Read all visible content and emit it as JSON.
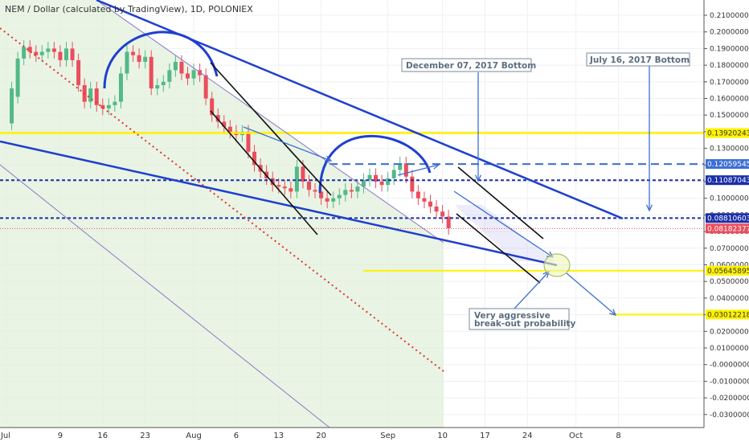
{
  "chart_data": {
    "type": "candlestick",
    "title": "NEM / Dollar (calculated by TradingView), 1D, POLONIEX",
    "x_tick_labels": [
      "Jul",
      "9",
      "16",
      "23",
      "Aug",
      "6",
      "13",
      "20",
      "Sep",
      "10",
      "17",
      "24",
      "Oct",
      "8"
    ],
    "y_tick_labels": [
      "0.21000000",
      "0.20000000",
      "0.19000000",
      "0.18000000",
      "0.17000000",
      "0.16000000",
      "0.15000000",
      "0.14000000",
      "0.13000000",
      "0.12000000",
      "0.11000000",
      "0.10000000",
      "0.09000000",
      "0.08000000",
      "0.07000000",
      "0.06000000",
      "0.05000000",
      "0.04000000",
      "0.03000000",
      "0.02000000",
      "0.01000000",
      "-0.00000000",
      "-0.01000000",
      "-0.02000000",
      "-0.03000000"
    ],
    "ylim": [
      -0.0335,
      0.2175
    ],
    "grid": true,
    "colors": {
      "up": "#53b987",
      "down": "#eb4d5c",
      "trend": "#1f3fcf",
      "level": "#fff200"
    },
    "candles": [
      {
        "x": 1,
        "o": 0.145,
        "c": 0.166
      },
      {
        "x": 2,
        "o": 0.161,
        "c": 0.184
      },
      {
        "x": 3,
        "o": 0.184,
        "c": 0.191
      },
      {
        "x": 4,
        "o": 0.191,
        "c": 0.188
      },
      {
        "x": 5,
        "o": 0.188,
        "c": 0.186
      },
      {
        "x": 6,
        "o": 0.186,
        "c": 0.188
      },
      {
        "x": 7,
        "o": 0.188,
        "c": 0.19
      },
      {
        "x": 8,
        "o": 0.19,
        "c": 0.188
      },
      {
        "x": 9,
        "o": 0.188,
        "c": 0.183
      },
      {
        "x": 10,
        "o": 0.183,
        "c": 0.19
      },
      {
        "x": 11,
        "o": 0.19,
        "c": 0.183
      },
      {
        "x": 12,
        "o": 0.183,
        "c": 0.168
      },
      {
        "x": 13,
        "o": 0.168,
        "c": 0.158
      },
      {
        "x": 14,
        "o": 0.158,
        "c": 0.166
      },
      {
        "x": 15,
        "o": 0.166,
        "c": 0.156
      },
      {
        "x": 16,
        "o": 0.156,
        "c": 0.154
      },
      {
        "x": 17,
        "o": 0.154,
        "c": 0.156
      },
      {
        "x": 18,
        "o": 0.156,
        "c": 0.158
      },
      {
        "x": 19,
        "o": 0.158,
        "c": 0.175
      },
      {
        "x": 20,
        "o": 0.175,
        "c": 0.188
      },
      {
        "x": 21,
        "o": 0.188,
        "c": 0.186
      },
      {
        "x": 22,
        "o": 0.186,
        "c": 0.182
      },
      {
        "x": 23,
        "o": 0.182,
        "c": 0.185
      },
      {
        "x": 24,
        "o": 0.185,
        "c": 0.166
      },
      {
        "x": 25,
        "o": 0.166,
        "c": 0.168
      },
      {
        "x": 26,
        "o": 0.168,
        "c": 0.17
      },
      {
        "x": 27,
        "o": 0.17,
        "c": 0.177
      },
      {
        "x": 28,
        "o": 0.177,
        "c": 0.182
      },
      {
        "x": 29,
        "o": 0.182,
        "c": 0.175
      },
      {
        "x": 30,
        "o": 0.175,
        "c": 0.172
      },
      {
        "x": 31,
        "o": 0.172,
        "c": 0.177
      },
      {
        "x": 32,
        "o": 0.177,
        "c": 0.174
      },
      {
        "x": 33,
        "o": 0.174,
        "c": 0.16
      },
      {
        "x": 34,
        "o": 0.16,
        "c": 0.15
      },
      {
        "x": 35,
        "o": 0.15,
        "c": 0.146
      },
      {
        "x": 36,
        "o": 0.146,
        "c": 0.143
      },
      {
        "x": 37,
        "o": 0.143,
        "c": 0.14
      },
      {
        "x": 38,
        "o": 0.14,
        "c": 0.138
      },
      {
        "x": 39,
        "o": 0.138,
        "c": 0.14
      },
      {
        "x": 40,
        "o": 0.14,
        "c": 0.128
      },
      {
        "x": 41,
        "o": 0.128,
        "c": 0.12
      },
      {
        "x": 42,
        "o": 0.12,
        "c": 0.116
      },
      {
        "x": 43,
        "o": 0.116,
        "c": 0.112
      },
      {
        "x": 44,
        "o": 0.112,
        "c": 0.108
      },
      {
        "x": 45,
        "o": 0.108,
        "c": 0.107
      },
      {
        "x": 46,
        "o": 0.107,
        "c": 0.106
      },
      {
        "x": 47,
        "o": 0.106,
        "c": 0.104
      },
      {
        "x": 48,
        "o": 0.104,
        "c": 0.119
      },
      {
        "x": 49,
        "o": 0.119,
        "c": 0.11
      },
      {
        "x": 50,
        "o": 0.11,
        "c": 0.105
      },
      {
        "x": 51,
        "o": 0.105,
        "c": 0.104
      },
      {
        "x": 52,
        "o": 0.104,
        "c": 0.1
      },
      {
        "x": 53,
        "o": 0.1,
        "c": 0.098
      },
      {
        "x": 54,
        "o": 0.098,
        "c": 0.1
      },
      {
        "x": 55,
        "o": 0.1,
        "c": 0.102
      },
      {
        "x": 56,
        "o": 0.102,
        "c": 0.105
      },
      {
        "x": 57,
        "o": 0.105,
        "c": 0.104
      },
      {
        "x": 58,
        "o": 0.104,
        "c": 0.107
      },
      {
        "x": 59,
        "o": 0.107,
        "c": 0.111
      },
      {
        "x": 60,
        "o": 0.111,
        "c": 0.114
      },
      {
        "x": 61,
        "o": 0.114,
        "c": 0.11
      },
      {
        "x": 62,
        "o": 0.11,
        "c": 0.108
      },
      {
        "x": 63,
        "o": 0.108,
        "c": 0.112
      },
      {
        "x": 64,
        "o": 0.112,
        "c": 0.117
      },
      {
        "x": 65,
        "o": 0.117,
        "c": 0.121
      },
      {
        "x": 66,
        "o": 0.121,
        "c": 0.113
      },
      {
        "x": 67,
        "o": 0.113,
        "c": 0.104
      },
      {
        "x": 68,
        "o": 0.104,
        "c": 0.1
      },
      {
        "x": 69,
        "o": 0.1,
        "c": 0.098
      },
      {
        "x": 70,
        "o": 0.098,
        "c": 0.095
      },
      {
        "x": 71,
        "o": 0.095,
        "c": 0.092
      },
      {
        "x": 72,
        "o": 0.092,
        "c": 0.089
      },
      {
        "x": 73,
        "o": 0.089,
        "c": 0.082
      }
    ],
    "price_labels": [
      {
        "value": 0.13920243,
        "text": "0.13920243",
        "bg": "#fff200",
        "fg": "#333333"
      },
      {
        "value": 0.12059545,
        "text": "0.12059545",
        "bg": "#3b6fd4",
        "fg": "#ffffff"
      },
      {
        "value": 0.11087043,
        "text": "0.11087043",
        "bg": "#1b2fa8",
        "fg": "#ffffff"
      },
      {
        "value": 0.08810603,
        "text": "0.08810603",
        "bg": "#1b2fa8",
        "fg": "#ffffff"
      },
      {
        "value": 0.08182377,
        "text": "0.08182377",
        "bg": "#eb4d5c",
        "fg": "#ffffff"
      },
      {
        "value": 0.05645895,
        "text": "0.05645895",
        "bg": "#fff200",
        "fg": "#333333"
      },
      {
        "value": 0.03012218,
        "text": "0.03012218",
        "bg": "#fff200",
        "fg": "#333333"
      }
    ],
    "annotations": [
      {
        "text": "December 07, 2017 Bottom"
      },
      {
        "text": "July 16, 2017 Bottom"
      },
      {
        "text": "Very aggressive"
      },
      {
        "text": "break-out probability"
      }
    ]
  }
}
